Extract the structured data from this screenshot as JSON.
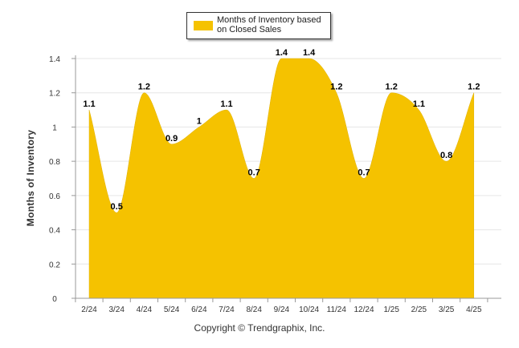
{
  "chart_data": {
    "type": "area",
    "categories": [
      "2/24",
      "3/24",
      "4/24",
      "5/24",
      "6/24",
      "7/24",
      "8/24",
      "9/24",
      "10/24",
      "11/24",
      "12/24",
      "1/25",
      "2/25",
      "3/25",
      "4/25"
    ],
    "series": [
      {
        "name": "Months of Inventory based on Closed Sales",
        "values": [
          1.1,
          0.5,
          1.2,
          0.9,
          1,
          1.1,
          0.7,
          1.4,
          1.4,
          1.2,
          0.7,
          1.2,
          1.1,
          0.8,
          1.2
        ]
      }
    ],
    "data_labels": [
      "1.1",
      "0.5",
      "1.2",
      "0.9",
      "1",
      "1.1",
      "0.7",
      "1.4",
      "1.4",
      "1.2",
      "0.7",
      "1.2",
      "1.1",
      "0.8",
      "1.2"
    ],
    "ylabel": "Months of Inventory",
    "xlabel": "",
    "ylim": [
      0,
      1.4
    ],
    "yticks": [
      "0",
      "0.2",
      "0.4",
      "0.6",
      "0.8",
      "1",
      "1.2",
      "1.4"
    ],
    "grid": true,
    "legend_position": "top-center",
    "fill_color": "#F5C200",
    "credit": "Copyright © Trendgraphix, Inc."
  }
}
